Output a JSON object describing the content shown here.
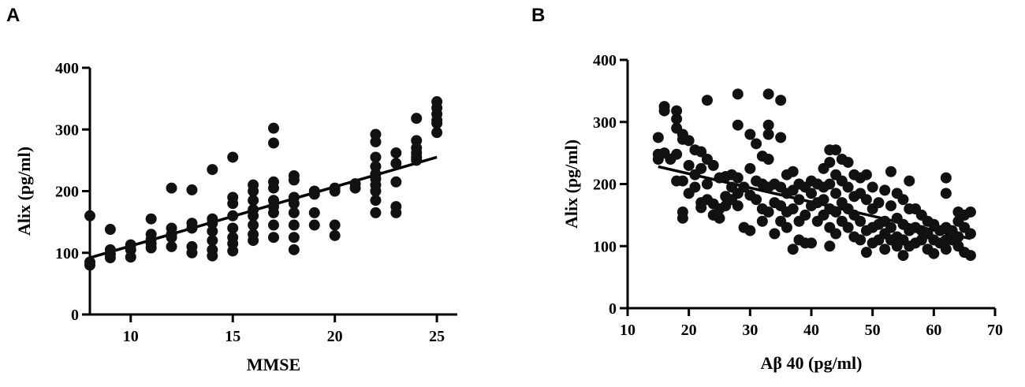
{
  "chart_data": [
    {
      "panel": "A",
      "type": "scatter",
      "xlabel": "MMSE",
      "ylabel": "Alix (pg/ml)",
      "xlim": [
        8,
        26
      ],
      "ylim": [
        0,
        400
      ],
      "xticks": [
        10,
        15,
        20,
        25
      ],
      "yticks": [
        0,
        100,
        200,
        300,
        400
      ],
      "fit_line": [
        [
          8,
          92
        ],
        [
          25,
          255
        ]
      ],
      "points": [
        [
          8,
          160
        ],
        [
          8,
          85
        ],
        [
          8,
          80
        ],
        [
          9,
          138
        ],
        [
          9,
          105
        ],
        [
          9,
          98
        ],
        [
          9,
          92
        ],
        [
          10,
          113
        ],
        [
          10,
          105
        ],
        [
          10,
          93
        ],
        [
          11,
          155
        ],
        [
          11,
          130
        ],
        [
          11,
          122
        ],
        [
          11,
          115
        ],
        [
          11,
          108
        ],
        [
          12,
          205
        ],
        [
          12,
          140
        ],
        [
          12,
          130
        ],
        [
          12,
          125
        ],
        [
          12,
          110
        ],
        [
          13,
          202
        ],
        [
          13,
          148
        ],
        [
          13,
          140
        ],
        [
          13,
          110
        ],
        [
          13,
          100
        ],
        [
          14,
          235
        ],
        [
          14,
          155
        ],
        [
          14,
          148
        ],
        [
          14,
          135
        ],
        [
          14,
          120
        ],
        [
          14,
          105
        ],
        [
          14,
          95
        ],
        [
          15,
          255
        ],
        [
          15,
          190
        ],
        [
          15,
          180
        ],
        [
          15,
          160
        ],
        [
          15,
          140
        ],
        [
          15,
          125
        ],
        [
          15,
          115
        ],
        [
          15,
          103
        ],
        [
          16,
          210
        ],
        [
          16,
          200
        ],
        [
          16,
          185
        ],
        [
          16,
          170
        ],
        [
          16,
          160
        ],
        [
          16,
          145
        ],
        [
          16,
          130
        ],
        [
          16,
          120
        ],
        [
          17,
          302
        ],
        [
          17,
          278
        ],
        [
          17,
          215
        ],
        [
          17,
          205
        ],
        [
          17,
          185
        ],
        [
          17,
          175
        ],
        [
          17,
          165
        ],
        [
          17,
          145
        ],
        [
          17,
          125
        ],
        [
          18,
          225
        ],
        [
          18,
          218
        ],
        [
          18,
          190
        ],
        [
          18,
          180
        ],
        [
          18,
          165
        ],
        [
          18,
          145
        ],
        [
          18,
          125
        ],
        [
          18,
          105
        ],
        [
          19,
          200
        ],
        [
          19,
          195
        ],
        [
          19,
          165
        ],
        [
          19,
          145
        ],
        [
          20,
          205
        ],
        [
          20,
          200
        ],
        [
          20,
          145
        ],
        [
          20,
          128
        ],
        [
          21,
          212
        ],
        [
          21,
          205
        ],
        [
          22,
          292
        ],
        [
          22,
          280
        ],
        [
          22,
          255
        ],
        [
          22,
          240
        ],
        [
          22,
          228
        ],
        [
          22,
          220
        ],
        [
          22,
          210
        ],
        [
          22,
          200
        ],
        [
          22,
          185
        ],
        [
          22,
          165
        ],
        [
          23,
          262
        ],
        [
          23,
          245
        ],
        [
          23,
          215
        ],
        [
          23,
          175
        ],
        [
          23,
          165
        ],
        [
          24,
          318
        ],
        [
          24,
          282
        ],
        [
          24,
          270
        ],
        [
          24,
          262
        ],
        [
          24,
          255
        ],
        [
          24,
          250
        ],
        [
          25,
          345
        ],
        [
          25,
          335
        ],
        [
          25,
          325
        ],
        [
          25,
          315
        ],
        [
          25,
          310
        ],
        [
          25,
          295
        ]
      ]
    },
    {
      "panel": "B",
      "type": "scatter",
      "xlabel": "Aβ 40 (pg/ml)",
      "ylabel": "Alix (pg/ml)",
      "xlim": [
        10,
        70
      ],
      "ylim": [
        0,
        400
      ],
      "xticks": [
        10,
        20,
        30,
        40,
        50,
        60,
        70
      ],
      "yticks": [
        0,
        100,
        200,
        300,
        400
      ],
      "fit_line": [
        [
          15,
          228
        ],
        [
          66,
          112
        ]
      ],
      "points": [
        [
          15,
          275
        ],
        [
          15,
          248
        ],
        [
          15,
          240
        ],
        [
          16,
          325
        ],
        [
          16,
          318
        ],
        [
          16,
          250
        ],
        [
          17,
          240
        ],
        [
          18,
          318
        ],
        [
          18,
          305
        ],
        [
          18,
          290
        ],
        [
          18,
          248
        ],
        [
          18,
          205
        ],
        [
          19,
          280
        ],
        [
          19,
          272
        ],
        [
          19,
          155
        ],
        [
          19,
          145
        ],
        [
          19,
          205
        ],
        [
          20,
          270
        ],
        [
          20,
          230
        ],
        [
          20,
          185
        ],
        [
          21,
          255
        ],
        [
          21,
          215
        ],
        [
          21,
          195
        ],
        [
          22,
          252
        ],
        [
          22,
          225
        ],
        [
          22,
          170
        ],
        [
          22,
          162
        ],
        [
          23,
          335
        ],
        [
          23,
          240
        ],
        [
          23,
          200
        ],
        [
          23,
          175
        ],
        [
          24,
          230
        ],
        [
          24,
          168
        ],
        [
          24,
          150
        ],
        [
          25,
          210
        ],
        [
          25,
          160
        ],
        [
          25,
          145
        ],
        [
          26,
          212
        ],
        [
          26,
          180
        ],
        [
          26,
          165
        ],
        [
          27,
          215
        ],
        [
          27,
          195
        ],
        [
          27,
          175
        ],
        [
          28,
          345
        ],
        [
          28,
          295
        ],
        [
          28,
          210
        ],
        [
          28,
          185
        ],
        [
          28,
          165
        ],
        [
          29,
          195
        ],
        [
          29,
          130
        ],
        [
          30,
          280
        ],
        [
          30,
          225
        ],
        [
          30,
          182
        ],
        [
          30,
          125
        ],
        [
          31,
          265
        ],
        [
          31,
          205
        ],
        [
          31,
          175
        ],
        [
          32,
          245
        ],
        [
          32,
          200
        ],
        [
          32,
          160
        ],
        [
          32,
          140
        ],
        [
          33,
          345
        ],
        [
          33,
          295
        ],
        [
          33,
          280
        ],
        [
          33,
          240
        ],
        [
          33,
          195
        ],
        [
          33,
          155
        ],
        [
          34,
          200
        ],
        [
          34,
          170
        ],
        [
          34,
          120
        ],
        [
          35,
          335
        ],
        [
          35,
          275
        ],
        [
          35,
          195
        ],
        [
          35,
          165
        ],
        [
          35,
          140
        ],
        [
          36,
          215
        ],
        [
          36,
          185
        ],
        [
          36,
          155
        ],
        [
          36,
          130
        ],
        [
          37,
          220
        ],
        [
          37,
          190
        ],
        [
          37,
          160
        ],
        [
          37,
          95
        ],
        [
          38,
          200
        ],
        [
          38,
          175
        ],
        [
          38,
          140
        ],
        [
          38,
          110
        ],
        [
          39,
          195
        ],
        [
          39,
          150
        ],
        [
          39,
          105
        ],
        [
          40,
          205
        ],
        [
          40,
          185
        ],
        [
          40,
          165
        ],
        [
          40,
          105
        ],
        [
          41,
          200
        ],
        [
          41,
          170
        ],
        [
          41,
          140
        ],
        [
          42,
          225
        ],
        [
          42,
          195
        ],
        [
          42,
          175
        ],
        [
          42,
          150
        ],
        [
          43,
          255
        ],
        [
          43,
          235
        ],
        [
          43,
          200
        ],
        [
          43,
          160
        ],
        [
          43,
          130
        ],
        [
          43,
          100
        ],
        [
          44,
          255
        ],
        [
          44,
          215
        ],
        [
          44,
          185
        ],
        [
          44,
          155
        ],
        [
          44,
          120
        ],
        [
          45,
          240
        ],
        [
          45,
          205
        ],
        [
          45,
          170
        ],
        [
          45,
          140
        ],
        [
          46,
          235
        ],
        [
          46,
          195
        ],
        [
          46,
          160
        ],
        [
          46,
          130
        ],
        [
          47,
          215
        ],
        [
          47,
          180
        ],
        [
          47,
          150
        ],
        [
          47,
          115
        ],
        [
          48,
          210
        ],
        [
          48,
          185
        ],
        [
          48,
          140
        ],
        [
          48,
          110
        ],
        [
          49,
          215
        ],
        [
          49,
          175
        ],
        [
          49,
          125
        ],
        [
          49,
          90
        ],
        [
          50,
          195
        ],
        [
          50,
          160
        ],
        [
          50,
          130
        ],
        [
          50,
          105
        ],
        [
          51,
          170
        ],
        [
          51,
          135
        ],
        [
          51,
          110
        ],
        [
          52,
          190
        ],
        [
          52,
          140
        ],
        [
          52,
          120
        ],
        [
          52,
          95
        ],
        [
          53,
          220
        ],
        [
          53,
          165
        ],
        [
          53,
          130
        ],
        [
          53,
          110
        ],
        [
          54,
          185
        ],
        [
          54,
          145
        ],
        [
          54,
          115
        ],
        [
          54,
          100
        ],
        [
          55,
          175
        ],
        [
          55,
          135
        ],
        [
          55,
          110
        ],
        [
          55,
          85
        ],
        [
          56,
          205
        ],
        [
          56,
          160
        ],
        [
          56,
          125
        ],
        [
          56,
          100
        ],
        [
          57,
          160
        ],
        [
          57,
          130
        ],
        [
          57,
          105
        ],
        [
          58,
          150
        ],
        [
          58,
          125
        ],
        [
          58,
          110
        ],
        [
          59,
          140
        ],
        [
          59,
          120
        ],
        [
          59,
          95
        ],
        [
          60,
          135
        ],
        [
          60,
          110
        ],
        [
          60,
          88
        ],
        [
          61,
          125
        ],
        [
          61,
          105
        ],
        [
          62,
          210
        ],
        [
          62,
          185
        ],
        [
          62,
          130
        ],
        [
          62,
          110
        ],
        [
          62,
          95
        ],
        [
          63,
          125
        ],
        [
          63,
          110
        ],
        [
          64,
          155
        ],
        [
          64,
          140
        ],
        [
          64,
          115
        ],
        [
          64,
          100
        ],
        [
          65,
          150
        ],
        [
          65,
          130
        ],
        [
          65,
          90
        ],
        [
          66,
          155
        ],
        [
          66,
          120
        ],
        [
          66,
          85
        ]
      ]
    }
  ],
  "panels": [
    {
      "letter": "A"
    },
    {
      "letter": "B"
    }
  ]
}
